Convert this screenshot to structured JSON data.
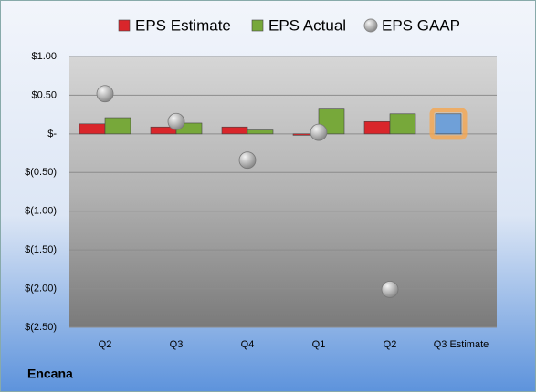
{
  "chart_data": {
    "type": "bar",
    "footer": "Encana",
    "categories": [
      "Q2",
      "Q3",
      "Q4",
      "Q1",
      "Q2",
      "Q3 Estimate"
    ],
    "series": [
      {
        "name": "EPS Estimate",
        "color": "#d9262b",
        "values": [
          0.13,
          0.09,
          0.09,
          -0.01,
          0.16,
          0.26
        ]
      },
      {
        "name": "EPS Actual",
        "color": "#77a83a",
        "values": [
          0.21,
          0.14,
          0.05,
          0.32,
          0.26,
          null
        ]
      },
      {
        "name": "EPS GAAP",
        "color": "#a6a6a6",
        "values": [
          0.52,
          0.16,
          -0.34,
          0.02,
          -2.01,
          null
        ],
        "marker": "circle"
      }
    ],
    "highlight_index": 5,
    "highlight_color": "#6fa0d8",
    "highlight_glow": "#f5a650",
    "ylim": [
      -2.5,
      1
    ],
    "yticks": [
      {
        "value": 1,
        "label": "$1.00"
      },
      {
        "value": 0.5,
        "label": "$0.50"
      },
      {
        "value": 0,
        "label": "$-"
      },
      {
        "value": -0.5,
        "label": "$(0.50)"
      },
      {
        "value": -1,
        "label": "$(1.00)"
      },
      {
        "value": -1.5,
        "label": "$(1.50)"
      },
      {
        "value": -2,
        "label": "$(2.00)"
      },
      {
        "value": -2.5,
        "label": "$(2.50)"
      }
    ],
    "grid": true
  }
}
